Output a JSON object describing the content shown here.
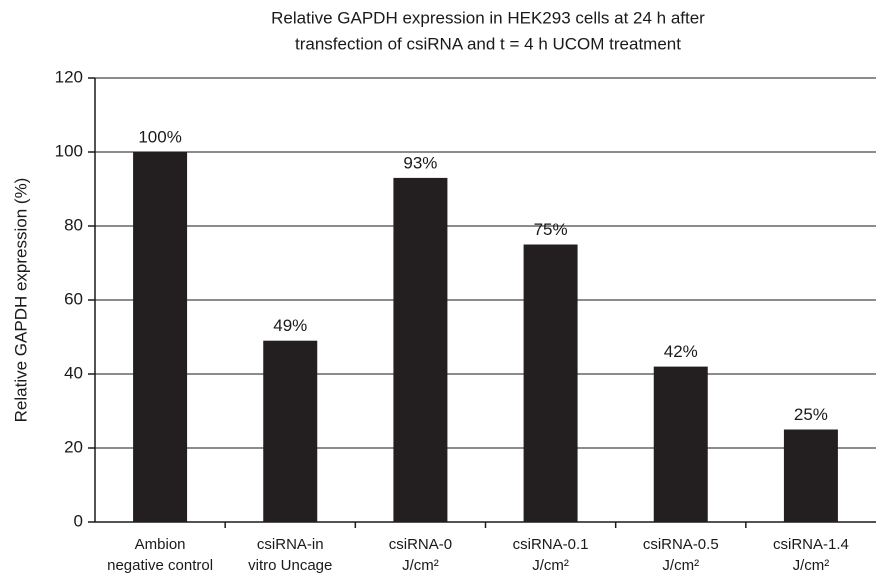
{
  "chart_data": {
    "type": "bar",
    "title": [
      "Relative GAPDH expression in HEK293 cells at 24 h after",
      "transfection of csiRNA and t = 4 h UCOM treatment"
    ],
    "y_label": "Relative GAPDH expression (%)",
    "categories": [
      [
        "Ambion",
        "negative control"
      ],
      [
        "csiRNA-in",
        "vitro Uncage"
      ],
      [
        "csiRNA-0",
        "J/cm²"
      ],
      [
        "csiRNA-0.1",
        "J/cm²"
      ],
      [
        "csiRNA-0.5",
        "J/cm²"
      ],
      [
        "csiRNA-1.4",
        "J/cm²"
      ]
    ],
    "values": [
      100,
      49,
      93,
      75,
      42,
      25
    ],
    "value_labels": [
      "100%",
      "49%",
      "93%",
      "75%",
      "42%",
      "25%"
    ],
    "color": "#231f20",
    "ylim": [
      0,
      120
    ],
    "yticks": [
      0,
      20,
      40,
      60,
      80,
      100,
      120
    ],
    "grid": true
  }
}
